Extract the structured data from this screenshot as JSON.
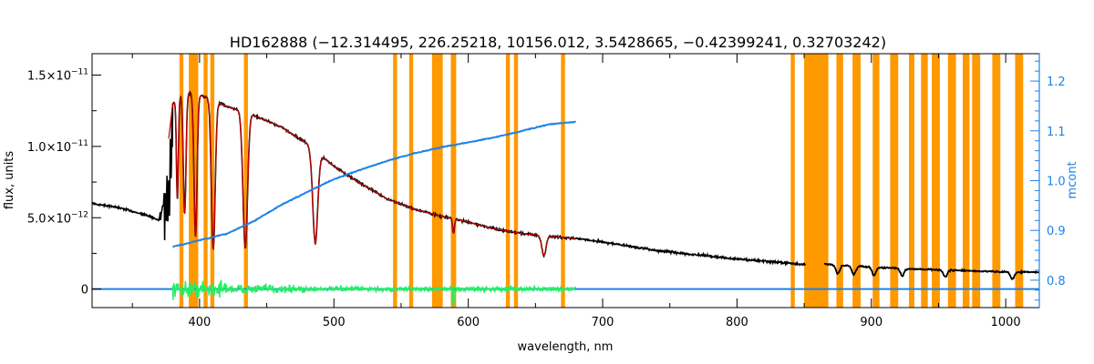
{
  "chart_data": {
    "type": "line",
    "title": "HD162888   (−12.314495, 226.25218, 10156.012, 3.5428665, −0.42399241, 0.32703242)",
    "xlabel": "wavelength, nm",
    "ylabel": "flux, units",
    "y2label": "mcont",
    "xlim": [
      320,
      1025
    ],
    "ylim": [
      -1.3e-12,
      1.65e-11
    ],
    "y2lim": [
      0.745,
      1.255
    ],
    "x_ticks": [
      400,
      500,
      600,
      700,
      800,
      900,
      1000
    ],
    "x_tick_labels": [
      "400",
      "500",
      "600",
      "700",
      "800",
      "900",
      "1000"
    ],
    "y_ticks": [
      0,
      5e-12,
      1e-11,
      1.5e-11
    ],
    "y_tick_labels": [
      {
        "mantissa": "0",
        "exponent": ""
      },
      {
        "mantissa": "5.0×10",
        "exponent": "−12"
      },
      {
        "mantissa": "1.0×10",
        "exponent": "−11"
      },
      {
        "mantissa": "1.5×10",
        "exponent": "−11"
      }
    ],
    "y2_ticks": [
      0.8,
      0.9,
      1.0,
      1.1,
      1.2
    ],
    "y2_tick_labels": [
      "0.8",
      "0.9",
      "1.0",
      "1.1",
      "1.2"
    ],
    "colors": {
      "observed": "#000000",
      "model": "#cc0000",
      "continuum": "#1e82e6",
      "residual": "#22ee66",
      "masked": "#ff9900",
      "right_axis": "#1e82e6"
    },
    "masked_regions": [
      [
        385,
        388
      ],
      [
        392,
        396
      ],
      [
        396,
        399
      ],
      [
        403,
        406
      ],
      [
        408,
        411
      ],
      [
        433,
        436
      ],
      [
        544,
        547
      ],
      [
        556,
        559
      ],
      [
        573,
        581
      ],
      [
        587,
        591
      ],
      [
        628,
        631
      ],
      [
        634,
        637
      ],
      [
        669,
        672
      ],
      [
        840,
        843
      ],
      [
        850,
        868
      ],
      [
        874,
        879
      ],
      [
        886,
        892
      ],
      [
        901,
        906
      ],
      [
        914,
        920
      ],
      [
        928,
        932
      ],
      [
        937,
        942
      ],
      [
        945,
        951
      ],
      [
        957,
        963
      ],
      [
        968,
        973
      ],
      [
        975,
        981
      ],
      [
        990,
        996
      ],
      [
        1007,
        1013
      ]
    ],
    "observed_anchors": [
      [
        320,
        6e-12
      ],
      [
        340,
        5.7e-12
      ],
      [
        360,
        5.2e-12
      ],
      [
        370,
        4.8e-12
      ],
      [
        380,
        1.3e-11
      ],
      [
        390,
        1.38e-11
      ],
      [
        400,
        1.36e-11
      ],
      [
        410,
        1.33e-11
      ],
      [
        420,
        1.28e-11
      ],
      [
        440,
        1.22e-11
      ],
      [
        460,
        1.14e-11
      ],
      [
        480,
        1.02e-11
      ],
      [
        500,
        8.6e-12
      ],
      [
        520,
        7.4e-12
      ],
      [
        540,
        6.3e-12
      ],
      [
        560,
        5.6e-12
      ],
      [
        580,
        5.1e-12
      ],
      [
        600,
        4.7e-12
      ],
      [
        620,
        4.2e-12
      ],
      [
        640,
        3.9e-12
      ],
      [
        660,
        3.7e-12
      ],
      [
        680,
        3.55e-12
      ],
      [
        700,
        3.3e-12
      ],
      [
        720,
        3e-12
      ],
      [
        740,
        2.7e-12
      ],
      [
        760,
        2.5e-12
      ],
      [
        780,
        2.3e-12
      ],
      [
        800,
        2.1e-12
      ],
      [
        820,
        1.95e-12
      ],
      [
        840,
        1.8e-12
      ],
      [
        850,
        1.7e-12
      ]
    ],
    "observed_ir_anchors": [
      [
        865,
        1.75e-12
      ],
      [
        880,
        1.65e-12
      ],
      [
        900,
        1.55e-12
      ],
      [
        920,
        1.45e-12
      ],
      [
        940,
        1.38e-12
      ],
      [
        960,
        1.32e-12
      ],
      [
        980,
        1.25e-12
      ],
      [
        1000,
        1.2e-12
      ],
      [
        1025,
        1.18e-12
      ]
    ],
    "absorption_lines": [
      {
        "center": 383.5,
        "depth": 7e-12,
        "width": 1.0
      },
      {
        "center": 388.9,
        "depth": 8.5e-12,
        "width": 1.4
      },
      {
        "center": 397.0,
        "depth": 1e-11,
        "width": 1.6
      },
      {
        "center": 410.2,
        "depth": 1.05e-11,
        "width": 2.0
      },
      {
        "center": 434.0,
        "depth": 9.5e-12,
        "width": 2.4
      },
      {
        "center": 486.1,
        "depth": 6.5e-12,
        "width": 2.6
      },
      {
        "center": 589.0,
        "depth": 1e-12,
        "width": 1.0
      },
      {
        "center": 656.3,
        "depth": 1.4e-12,
        "width": 2.2
      }
    ],
    "ir_absorption_lines": [
      {
        "center": 875,
        "depth": 6e-13,
        "width": 2.0
      },
      {
        "center": 887,
        "depth": 6e-13,
        "width": 2.0
      },
      {
        "center": 902,
        "depth": 6e-13,
        "width": 2.0
      },
      {
        "center": 923,
        "depth": 5e-13,
        "width": 2.0
      },
      {
        "center": 955,
        "depth": 5e-13,
        "width": 2.0
      },
      {
        "center": 1005,
        "depth": 5e-13,
        "width": 2.0
      }
    ],
    "model_range": [
      377,
      680
    ],
    "continuum_mcont": [
      [
        380,
        0.867
      ],
      [
        400,
        0.88
      ],
      [
        420,
        0.893
      ],
      [
        440,
        0.918
      ],
      [
        460,
        0.95
      ],
      [
        480,
        0.977
      ],
      [
        500,
        1.003
      ],
      [
        520,
        1.022
      ],
      [
        540,
        1.04
      ],
      [
        560,
        1.055
      ],
      [
        580,
        1.067
      ],
      [
        600,
        1.077
      ],
      [
        620,
        1.087
      ],
      [
        640,
        1.1
      ],
      [
        660,
        1.113
      ],
      [
        680,
        1.118
      ]
    ],
    "continuum_flat": {
      "x_start": 320,
      "x_end": 1025,
      "y": 0
    },
    "residual_range": [
      380,
      680
    ],
    "residual_noise_amplitude": 2.5e-13
  }
}
